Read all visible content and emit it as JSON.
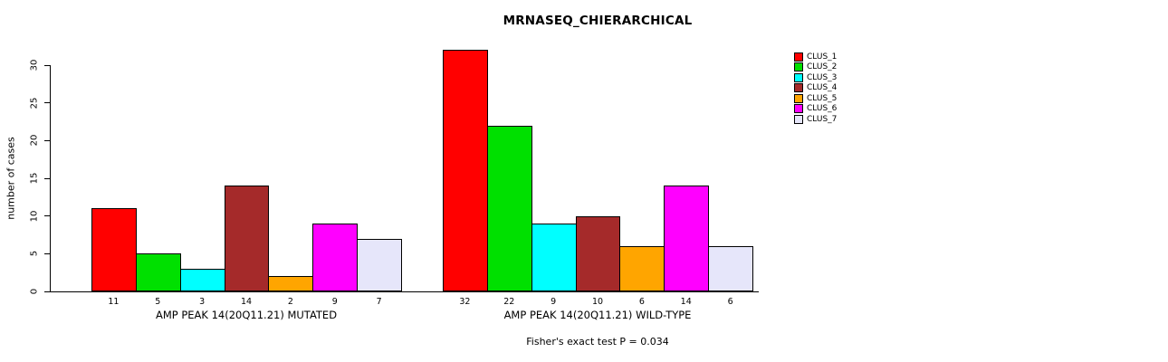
{
  "chart_data": {
    "type": "bar",
    "title": "MRNASEQ_CHIERARCHICAL",
    "ylabel": "number of cases",
    "ylim": [
      0,
      32
    ],
    "yticks": [
      0,
      5,
      10,
      15,
      20,
      25,
      30
    ],
    "grid": false,
    "legend_position": "right",
    "clusters": [
      {
        "label": "CLUS_1",
        "color": "#FF0000"
      },
      {
        "label": "CLUS_2",
        "color": "#00E000"
      },
      {
        "label": "CLUS_3",
        "color": "#00FFFF"
      },
      {
        "label": "CLUS_4",
        "color": "#A52A2A"
      },
      {
        "label": "CLUS_5",
        "color": "#FFA500"
      },
      {
        "label": "CLUS_6",
        "color": "#FF00FF"
      },
      {
        "label": "CLUS_7",
        "color": "#E6E6FA"
      }
    ],
    "groups": [
      {
        "label": "AMP PEAK 14(20Q11.21) MUTATED",
        "values": [
          11,
          5,
          3,
          14,
          2,
          9,
          7
        ]
      },
      {
        "label": "AMP PEAK 14(20Q11.21) WILD-TYPE",
        "values": [
          32,
          22,
          9,
          10,
          6,
          14,
          6
        ]
      }
    ],
    "annotation": "Fisher's exact test P = 0.034"
  }
}
